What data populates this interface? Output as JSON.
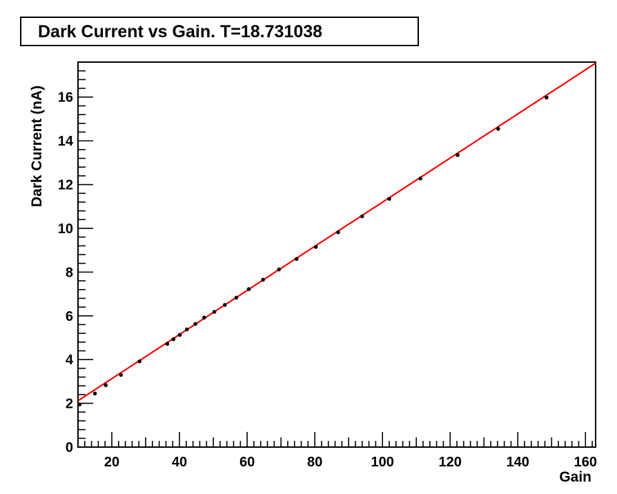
{
  "chart_data": {
    "type": "scatter",
    "title": "Dark Current vs Gain. T=18.731038",
    "xlabel": "Gain",
    "ylabel": "Dark Current (nA)",
    "xlim": [
      10,
      163
    ],
    "ylim": [
      0,
      17.6
    ],
    "xticks": [
      20,
      40,
      60,
      80,
      100,
      120,
      140,
      160
    ],
    "yticks": [
      0,
      2,
      4,
      6,
      8,
      10,
      12,
      14,
      16
    ],
    "series": [
      {
        "x": [
          10.5,
          15,
          18.2,
          22.7,
          28.2,
          36.4,
          38.2,
          40.1,
          42.2,
          44.7,
          47.3,
          50.3,
          53.4,
          56.8,
          60.5,
          64.7,
          69.4,
          74.6,
          80.3,
          86.9,
          94.0,
          102.0,
          111.2,
          122.2,
          134.2,
          148.5
        ],
        "y": [
          1.95,
          2.45,
          2.83,
          3.3,
          3.92,
          4.72,
          4.93,
          5.13,
          5.38,
          5.63,
          5.92,
          6.18,
          6.5,
          6.83,
          7.22,
          7.65,
          8.12,
          8.6,
          9.15,
          9.82,
          10.55,
          11.35,
          12.28,
          13.35,
          14.55,
          15.98
        ],
        "color": "#000000"
      }
    ],
    "fit_line": {
      "x": [
        10,
        163
      ],
      "y": [
        2.12,
        17.55
      ],
      "color": "#ff0000"
    },
    "grid": false,
    "legend": "none"
  }
}
